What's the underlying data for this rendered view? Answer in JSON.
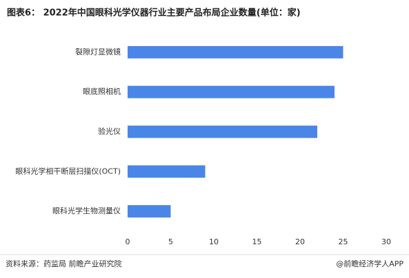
{
  "chart_data": {
    "type": "bar",
    "orientation": "horizontal",
    "title": "图表6： 2022年中国眼科光学仪器行业主要产品布局企业数量(单位：家)",
    "categories": [
      "裂隙灯显微镜",
      "眼底照相机",
      "验光仪",
      "眼科光学相干断层扫描仪(OCT)",
      "眼科光学生物测量仪"
    ],
    "values": [
      25,
      24,
      22,
      9,
      5
    ],
    "color": "#4a86e8",
    "xlim": [
      0,
      30
    ],
    "xticks": [
      0,
      5,
      10,
      15,
      20,
      25,
      30
    ],
    "grid": false,
    "source": "资料来源：药监局 前瞻产业研究院",
    "credit": "@前瞻经济学人APP"
  }
}
